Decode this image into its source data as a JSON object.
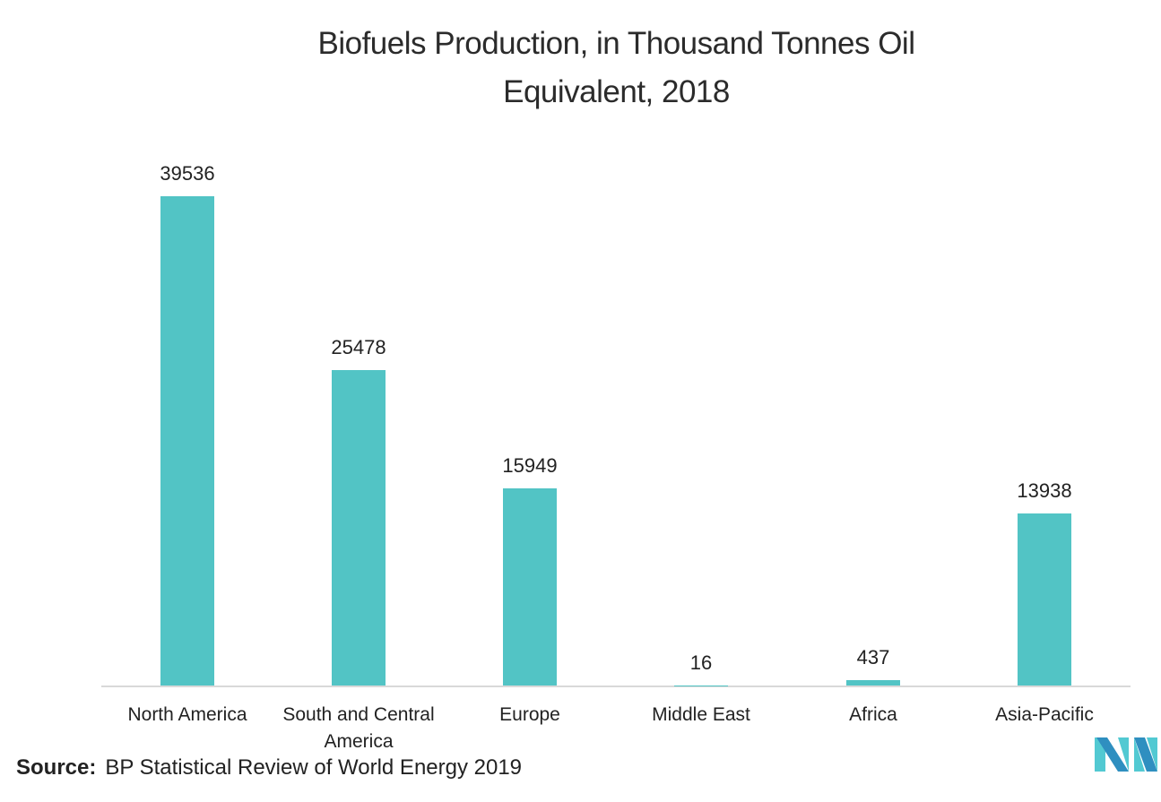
{
  "title_line1": "Biofuels Production, in Thousand Tonnes Oil",
  "title_line2": "Equivalent, 2018",
  "source": {
    "label": "Source:",
    "text": "BP Statistical Review of World Energy 2019"
  },
  "colors": {
    "bar": "#52c4c5",
    "baseline": "#d9d9d9",
    "logo_dark": "#2f8fc0",
    "logo_light": "#52c9d2"
  },
  "labels": [
    "39536",
    "25478",
    "15949",
    "16",
    "437",
    "13938"
  ],
  "categories": [
    "North America",
    "South and Central America",
    "Europe",
    "Middle East",
    "Africa",
    "Asia-Pacific"
  ],
  "chart_data": {
    "type": "bar",
    "title": "Biofuels Production, in Thousand Tonnes Oil Equivalent, 2018",
    "categories": [
      "North America",
      "South and Central America",
      "Europe",
      "Middle East",
      "Africa",
      "Asia-Pacific"
    ],
    "values": [
      39536,
      25478,
      15949,
      16,
      437,
      13938
    ],
    "xlabel": "",
    "ylabel": "",
    "ylim": [
      0,
      44000
    ],
    "grid": false,
    "legend": null,
    "data_labels": true,
    "source": "BP Statistical Review of World Energy 2019"
  }
}
